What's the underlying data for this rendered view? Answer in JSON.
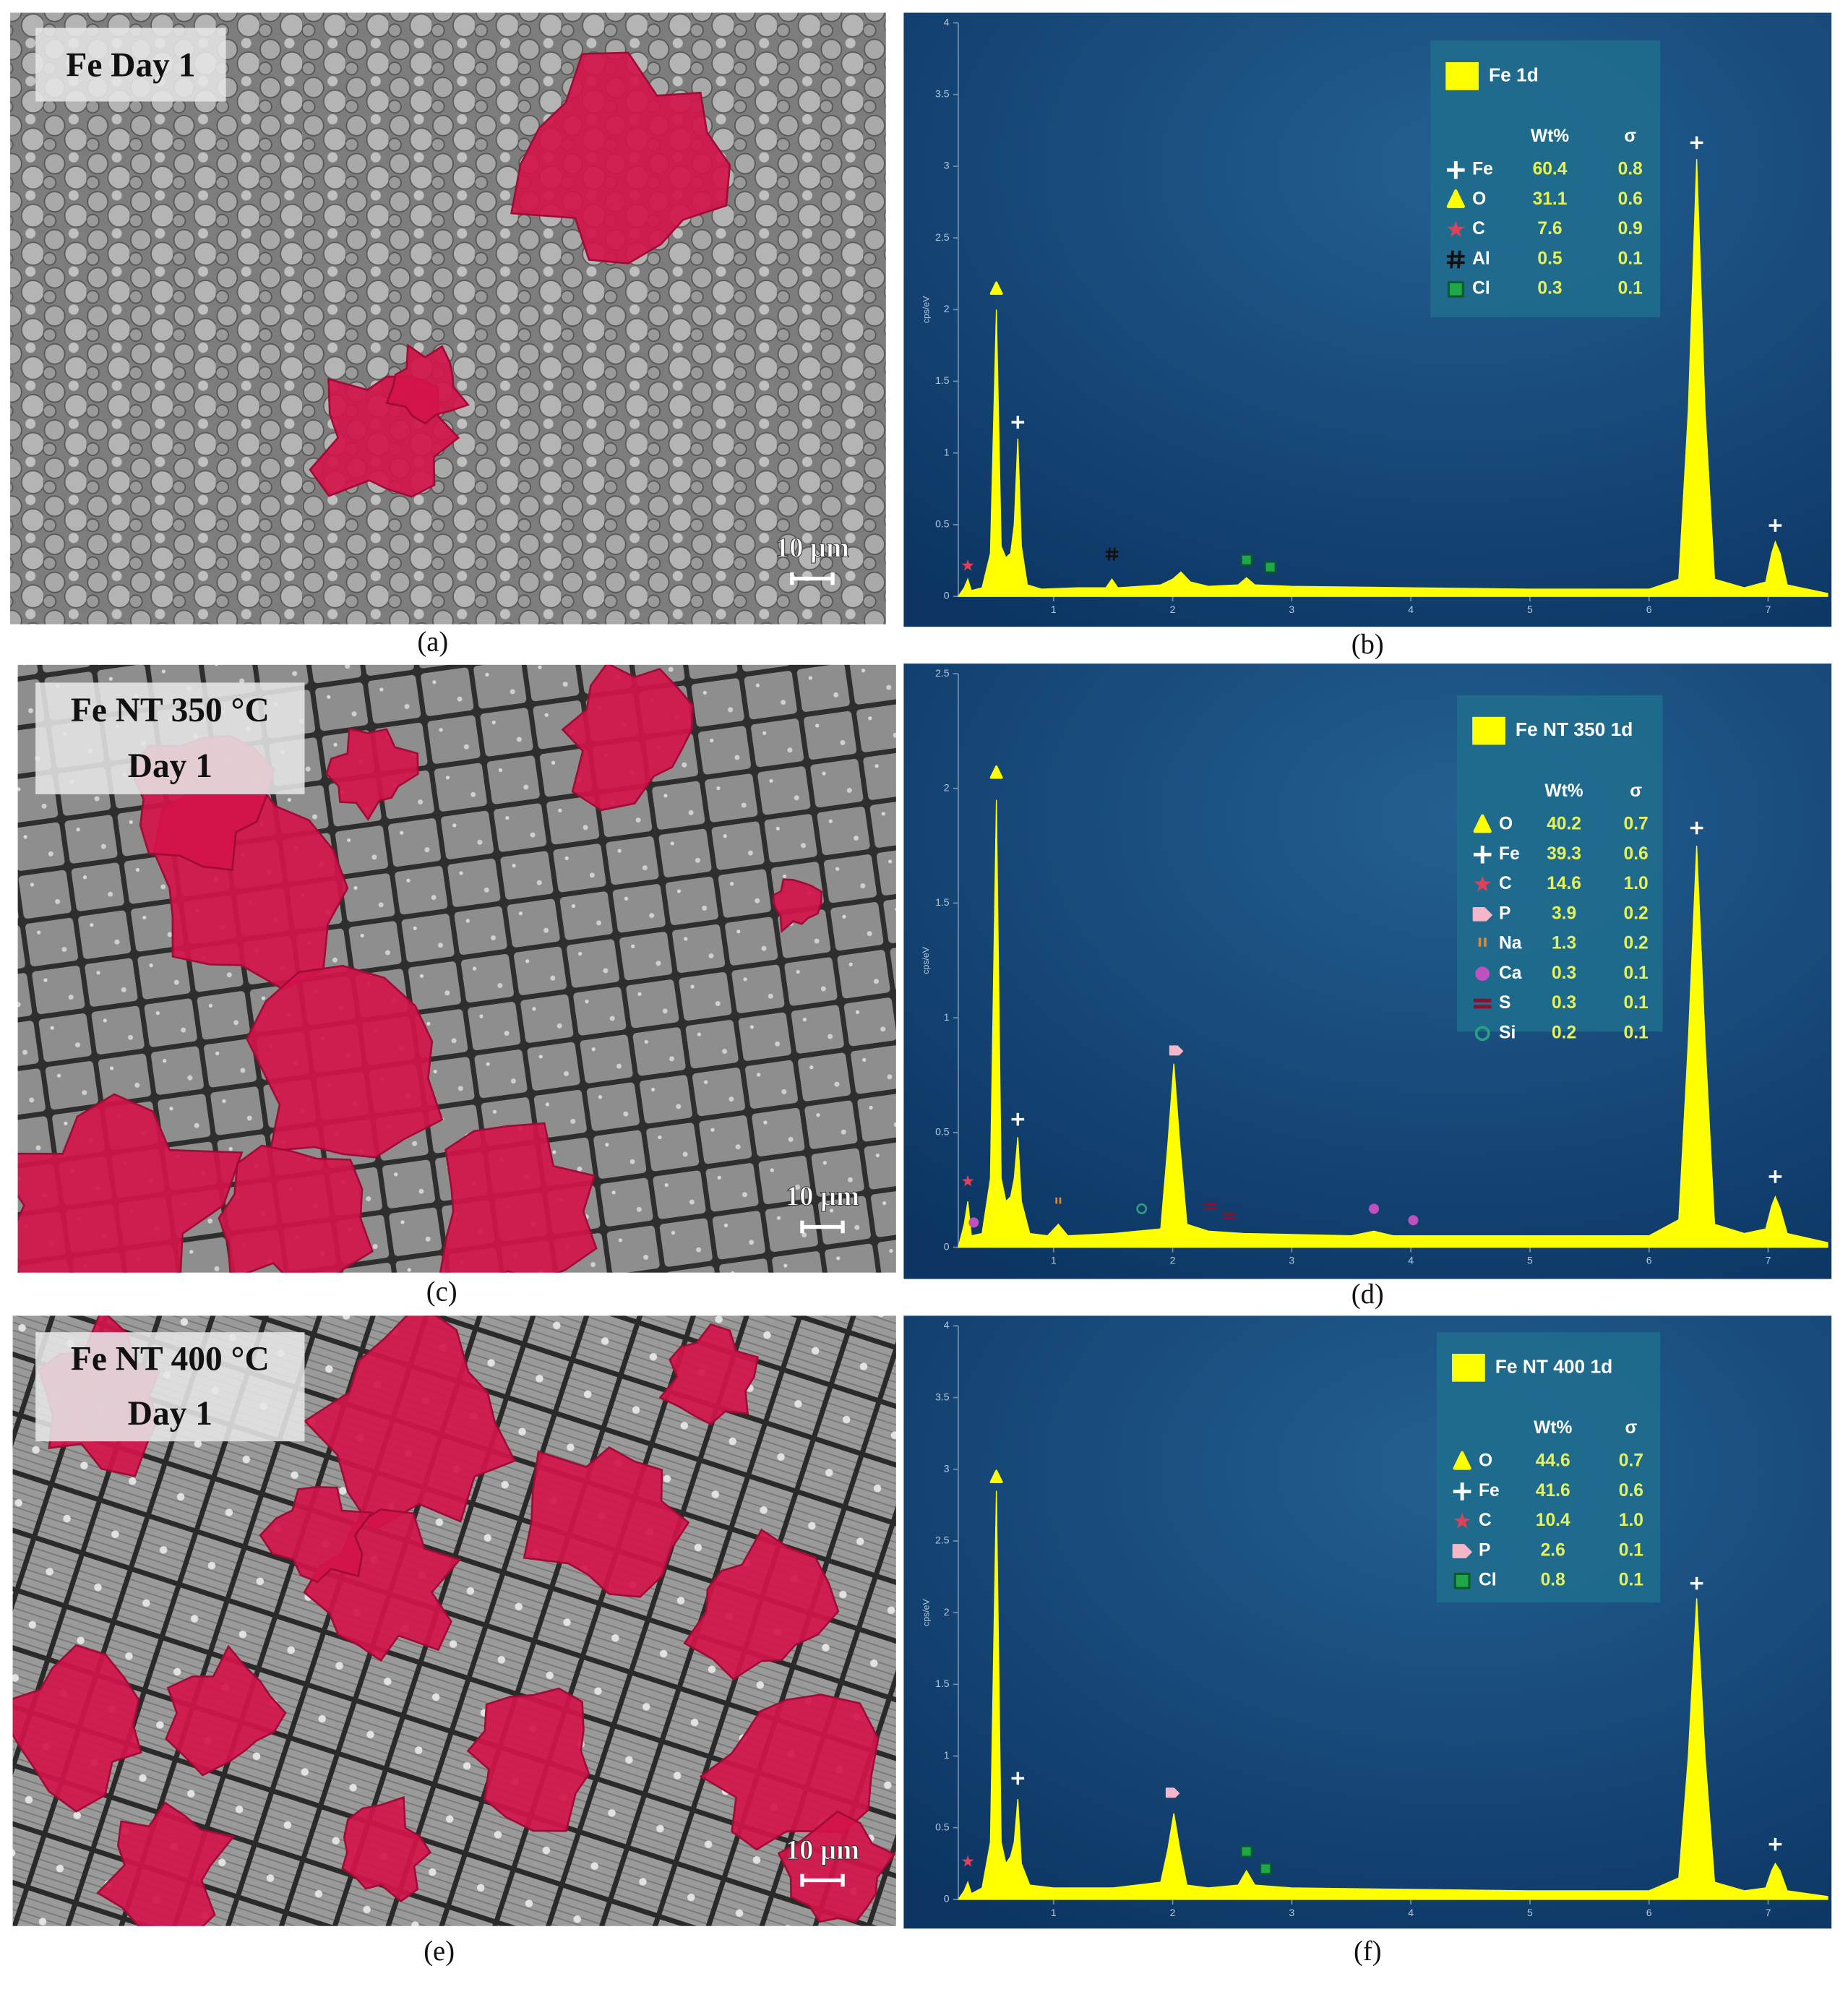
{
  "chart_data": [
    {
      "type": "spectrum",
      "caption": "(b)",
      "name": "Fe 1d",
      "ylabel": "cps/eV",
      "color": "#ffff00",
      "xlim": [
        0.2,
        7.5
      ],
      "xticks": [
        1,
        2,
        3,
        4,
        5,
        6,
        7
      ],
      "ylim": [
        0,
        4
      ],
      "yticks": [
        0,
        0.5,
        1,
        1.5,
        2,
        2.5,
        3,
        3.5,
        4
      ],
      "x": [
        0.2,
        0.25,
        0.28,
        0.31,
        0.4,
        0.47,
        0.52,
        0.56,
        0.6,
        0.64,
        0.67,
        0.7,
        0.73,
        0.78,
        0.9,
        1.2,
        1.44,
        1.49,
        1.54,
        1.9,
        2.0,
        2.07,
        2.15,
        2.3,
        2.55,
        2.62,
        2.69,
        3.0,
        4.0,
        5.0,
        6.0,
        6.25,
        6.33,
        6.4,
        6.47,
        6.55,
        6.8,
        6.98,
        7.03,
        7.06,
        7.1,
        7.16,
        7.5
      ],
      "values": [
        0,
        0.06,
        0.12,
        0.04,
        0.06,
        0.3,
        2.0,
        0.35,
        0.27,
        0.3,
        0.5,
        1.1,
        0.35,
        0.08,
        0.05,
        0.06,
        0.06,
        0.12,
        0.06,
        0.08,
        0.12,
        0.17,
        0.1,
        0.07,
        0.08,
        0.13,
        0.08,
        0.07,
        0.06,
        0.05,
        0.05,
        0.12,
        1.3,
        3.05,
        1.3,
        0.12,
        0.06,
        0.1,
        0.3,
        0.38,
        0.3,
        0.08,
        0.02
      ],
      "legend": {
        "headers": [
          "Wt%",
          "σ"
        ],
        "rows": [
          {
            "element": "Fe",
            "symbol": "plus",
            "color": "#ffffff",
            "wt": "60.4",
            "sigma": "0.8"
          },
          {
            "element": "O",
            "symbol": "triangle",
            "color": "#ffff00",
            "wt": "31.1",
            "sigma": "0.6"
          },
          {
            "element": "C",
            "symbol": "star",
            "color": "#e0405a",
            "wt": "7.6",
            "sigma": "0.9"
          },
          {
            "element": "Al",
            "symbol": "hash",
            "color": "#111111",
            "wt": "0.5",
            "sigma": "0.1"
          },
          {
            "element": "Cl",
            "symbol": "square",
            "color": "#1fa84a",
            "wt": "0.3",
            "sigma": "0.1"
          }
        ]
      },
      "markers": [
        {
          "element": "C",
          "x": 0.28,
          "y": 0.17
        },
        {
          "element": "O",
          "x": 0.52,
          "y": 2.1
        },
        {
          "element": "Fe",
          "x": 0.7,
          "y": 1.17
        },
        {
          "element": "Al",
          "x": 1.49,
          "y": 0.25
        },
        {
          "element": "Cl",
          "x": 2.62,
          "y": 0.21
        },
        {
          "element": "Cl",
          "x": 2.82,
          "y": 0.16
        },
        {
          "element": "Fe",
          "x": 6.4,
          "y": 3.12
        },
        {
          "element": "Fe",
          "x": 7.06,
          "y": 0.45
        }
      ]
    },
    {
      "type": "spectrum",
      "caption": "(d)",
      "name": "Fe NT 350 1d",
      "ylabel": "cps/eV",
      "color": "#ffff00",
      "xlim": [
        0.2,
        7.5
      ],
      "xticks": [
        1,
        2,
        3,
        4,
        5,
        6,
        7
      ],
      "ylim": [
        0,
        2.5
      ],
      "yticks": [
        0,
        0.5,
        1,
        1.5,
        2,
        2.5
      ],
      "x": [
        0.2,
        0.25,
        0.28,
        0.31,
        0.4,
        0.47,
        0.52,
        0.56,
        0.6,
        0.64,
        0.67,
        0.7,
        0.73,
        0.8,
        0.95,
        1.04,
        1.12,
        1.5,
        1.9,
        1.96,
        2.01,
        2.06,
        2.12,
        2.3,
        2.6,
        3.5,
        3.69,
        3.85,
        5.0,
        6.0,
        6.25,
        6.33,
        6.4,
        6.47,
        6.55,
        6.8,
        6.98,
        7.03,
        7.06,
        7.1,
        7.16,
        7.5
      ],
      "values": [
        0,
        0.1,
        0.2,
        0.05,
        0.06,
        0.3,
        1.95,
        0.3,
        0.2,
        0.22,
        0.3,
        0.48,
        0.2,
        0.06,
        0.05,
        0.1,
        0.05,
        0.06,
        0.08,
        0.45,
        0.8,
        0.45,
        0.1,
        0.07,
        0.06,
        0.05,
        0.07,
        0.05,
        0.05,
        0.05,
        0.12,
        0.9,
        1.75,
        0.9,
        0.1,
        0.06,
        0.08,
        0.18,
        0.22,
        0.17,
        0.06,
        0.02
      ],
      "legend": {
        "headers": [
          "Wt%",
          "σ"
        ],
        "rows": [
          {
            "element": "O",
            "symbol": "triangle",
            "color": "#ffff00",
            "wt": "40.2",
            "sigma": "0.7"
          },
          {
            "element": "Fe",
            "symbol": "plus",
            "color": "#ffffff",
            "wt": "39.3",
            "sigma": "0.6"
          },
          {
            "element": "C",
            "symbol": "star",
            "color": "#e0405a",
            "wt": "14.6",
            "sigma": "1.0"
          },
          {
            "element": "P",
            "symbol": "pentagon",
            "color": "#f4b6c8",
            "wt": "3.9",
            "sigma": "0.2"
          },
          {
            "element": "Na",
            "symbol": "quote",
            "color": "#e08a30",
            "wt": "1.3",
            "sigma": "0.2"
          },
          {
            "element": "Ca",
            "symbol": "circle",
            "color": "#c050c0",
            "wt": "0.3",
            "sigma": "0.1"
          },
          {
            "element": "S",
            "symbol": "equals",
            "color": "#8a1030",
            "wt": "0.3",
            "sigma": "0.1"
          },
          {
            "element": "Si",
            "symbol": "ring",
            "color": "#2aa080",
            "wt": "0.2",
            "sigma": "0.1"
          }
        ]
      },
      "markers": [
        {
          "element": "C",
          "x": 0.28,
          "y": 0.26
        },
        {
          "element": "Ca",
          "x": 0.33,
          "y": 0.08
        },
        {
          "element": "O",
          "x": 0.52,
          "y": 2.04
        },
        {
          "element": "Fe",
          "x": 0.7,
          "y": 0.53
        },
        {
          "element": "Na",
          "x": 1.04,
          "y": 0.17
        },
        {
          "element": "Si",
          "x": 1.74,
          "y": 0.14
        },
        {
          "element": "P",
          "x": 2.03,
          "y": 0.83
        },
        {
          "element": "S",
          "x": 2.32,
          "y": 0.15
        },
        {
          "element": "S",
          "x": 2.47,
          "y": 0.11
        },
        {
          "element": "Ca",
          "x": 3.69,
          "y": 0.14
        },
        {
          "element": "Ca",
          "x": 4.02,
          "y": 0.09
        },
        {
          "element": "Fe",
          "x": 6.4,
          "y": 1.8
        },
        {
          "element": "Fe",
          "x": 7.06,
          "y": 0.28
        }
      ]
    },
    {
      "type": "spectrum",
      "caption": "(f)",
      "name": "Fe NT 400 1d",
      "ylabel": "cps/eV",
      "color": "#ffff00",
      "xlim": [
        0.2,
        7.5
      ],
      "xticks": [
        1,
        2,
        3,
        4,
        5,
        6,
        7
      ],
      "ylim": [
        0,
        4
      ],
      "yticks": [
        0,
        0.5,
        1,
        1.5,
        2,
        2.5,
        3,
        3.5,
        4
      ],
      "x": [
        0.2,
        0.25,
        0.28,
        0.31,
        0.4,
        0.47,
        0.52,
        0.56,
        0.6,
        0.64,
        0.67,
        0.7,
        0.73,
        0.8,
        1.0,
        1.5,
        1.9,
        1.96,
        2.01,
        2.06,
        2.12,
        2.3,
        2.55,
        2.62,
        2.69,
        3.0,
        5.0,
        6.0,
        6.25,
        6.33,
        6.4,
        6.47,
        6.55,
        6.8,
        6.98,
        7.03,
        7.06,
        7.1,
        7.16,
        7.5
      ],
      "values": [
        0,
        0.06,
        0.12,
        0.04,
        0.08,
        0.4,
        2.85,
        0.4,
        0.25,
        0.3,
        0.4,
        0.7,
        0.25,
        0.1,
        0.08,
        0.08,
        0.12,
        0.35,
        0.6,
        0.35,
        0.1,
        0.08,
        0.1,
        0.2,
        0.1,
        0.08,
        0.06,
        0.06,
        0.15,
        1.0,
        2.1,
        1.0,
        0.12,
        0.06,
        0.08,
        0.2,
        0.25,
        0.2,
        0.06,
        0.02
      ],
      "legend": {
        "headers": [
          "Wt%",
          "σ"
        ],
        "rows": [
          {
            "element": "O",
            "symbol": "triangle",
            "color": "#ffff00",
            "wt": "44.6",
            "sigma": "0.7"
          },
          {
            "element": "Fe",
            "symbol": "plus",
            "color": "#ffffff",
            "wt": "41.6",
            "sigma": "0.6"
          },
          {
            "element": "C",
            "symbol": "star",
            "color": "#e0405a",
            "wt": "10.4",
            "sigma": "1.0"
          },
          {
            "element": "P",
            "symbol": "pentagon",
            "color": "#f4b6c8",
            "wt": "2.6",
            "sigma": "0.1"
          },
          {
            "element": "Cl",
            "symbol": "square",
            "color": "#1fa84a",
            "wt": "0.8",
            "sigma": "0.1"
          }
        ]
      },
      "markers": [
        {
          "element": "C",
          "x": 0.28,
          "y": 0.22
        },
        {
          "element": "O",
          "x": 0.52,
          "y": 2.9
        },
        {
          "element": "Fe",
          "x": 0.7,
          "y": 0.8
        },
        {
          "element": "P",
          "x": 2.0,
          "y": 0.7
        },
        {
          "element": "Cl",
          "x": 2.62,
          "y": 0.29
        },
        {
          "element": "Cl",
          "x": 2.78,
          "y": 0.17
        },
        {
          "element": "Fe",
          "x": 6.4,
          "y": 2.16
        },
        {
          "element": "Fe",
          "x": 7.06,
          "y": 0.34
        }
      ]
    }
  ],
  "images": [
    {
      "label": [
        "Fe Day 1"
      ],
      "scale_bar": "10 μm",
      "caption": "(a)"
    },
    {
      "label": [
        "Fe NT 350 °C",
        "Day 1"
      ],
      "scale_bar": "10 μm",
      "caption": "(c)"
    },
    {
      "label": [
        "Fe NT 400 °C",
        "Day 1"
      ],
      "scale_bar": "10 μm",
      "caption": "(e)"
    }
  ]
}
